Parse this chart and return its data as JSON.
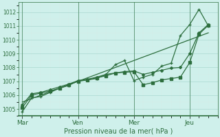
{
  "background_color": "#cff0eb",
  "grid_color": "#aad8d0",
  "line_color": "#2d6e3e",
  "xlabel": "Pression niveau de la mer( hPa )",
  "ylim": [
    1004.5,
    1012.7
  ],
  "yticks": [
    1005,
    1006,
    1007,
    1008,
    1009,
    1010,
    1011,
    1012
  ],
  "xtick_labels": [
    "Mar",
    "Ven",
    "Mer",
    "Jeu"
  ],
  "xtick_positions": [
    0,
    3,
    6,
    9
  ],
  "xlim": [
    -0.2,
    10.5
  ],
  "series1_x": [
    0.0,
    0.5,
    1.0,
    1.5,
    2.0,
    2.5,
    3.0,
    3.5,
    4.0,
    4.5,
    5.0,
    5.5,
    6.0,
    6.5,
    7.0,
    7.5,
    8.0,
    8.5,
    9.0,
    9.5,
    10.0
  ],
  "series1_y": [
    1004.8,
    1005.8,
    1005.9,
    1006.2,
    1006.5,
    1006.7,
    1007.05,
    1007.1,
    1007.2,
    1007.5,
    1008.2,
    1008.5,
    1007.05,
    1007.3,
    1007.5,
    1008.1,
    1008.3,
    1010.3,
    1011.1,
    1012.2,
    1011.0
  ],
  "series2_x": [
    0.0,
    0.5,
    1.0,
    1.5,
    2.0,
    2.5,
    3.0,
    3.5,
    4.0,
    4.5,
    5.0,
    5.5,
    6.0,
    6.5,
    7.0,
    7.5,
    8.0,
    8.5,
    9.0,
    9.5,
    10.0
  ],
  "series2_y": [
    1005.1,
    1006.0,
    1006.15,
    1006.3,
    1006.5,
    1006.75,
    1007.0,
    1007.1,
    1007.25,
    1007.4,
    1007.6,
    1007.65,
    1007.7,
    1006.75,
    1006.9,
    1007.1,
    1007.2,
    1007.3,
    1008.35,
    1010.4,
    1011.05
  ],
  "series3_x": [
    0.0,
    0.5,
    1.0,
    1.5,
    2.0,
    2.5,
    3.0,
    3.5,
    4.0,
    4.5,
    5.0,
    5.5,
    6.0,
    6.5,
    7.0,
    7.5,
    8.0,
    8.5,
    9.0,
    9.5,
    10.0
  ],
  "series3_y": [
    1005.3,
    1006.1,
    1006.2,
    1006.4,
    1006.6,
    1006.8,
    1007.05,
    1007.15,
    1007.3,
    1007.5,
    1007.6,
    1007.7,
    1007.75,
    1007.5,
    1007.65,
    1007.8,
    1007.95,
    1008.0,
    1009.0,
    1010.5,
    1011.1
  ],
  "series4_x": [
    0.0,
    10.0
  ],
  "series4_y": [
    1005.5,
    1010.5
  ]
}
